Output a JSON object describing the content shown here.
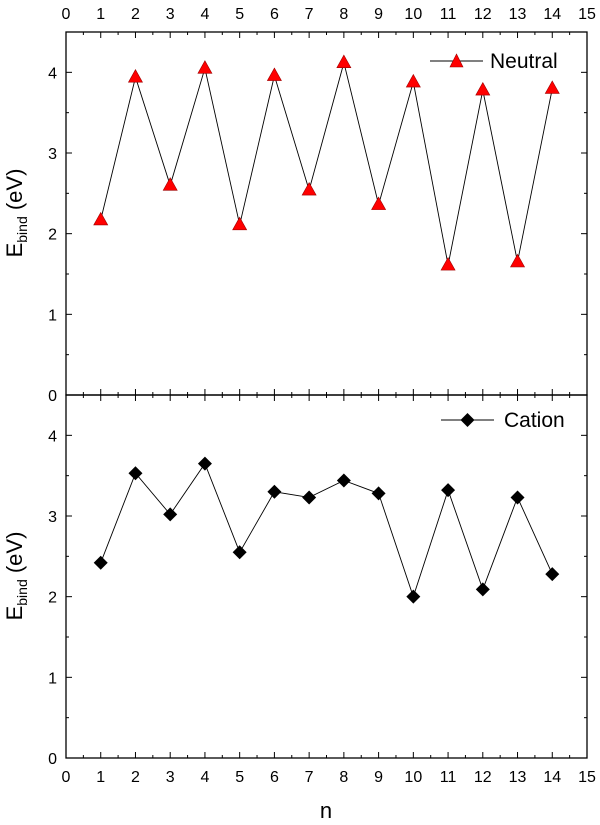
{
  "chart_data": [
    {
      "type": "line",
      "panel": "top",
      "x": [
        1,
        2,
        3,
        4,
        5,
        6,
        7,
        8,
        9,
        10,
        11,
        12,
        13,
        14
      ],
      "series": [
        {
          "name": "Neutral",
          "marker": "triangle",
          "color": "#ff0000",
          "values": [
            2.17,
            3.94,
            2.6,
            4.05,
            2.11,
            3.96,
            2.54,
            4.12,
            2.36,
            3.88,
            1.61,
            3.78,
            1.65,
            3.8
          ]
        }
      ],
      "xlim": [
        0,
        15
      ],
      "ylim": [
        0,
        4.5
      ],
      "xticks": [
        "0",
        "1",
        "2",
        "3",
        "4",
        "5",
        "6",
        "7",
        "8",
        "9",
        "10",
        "11",
        "12",
        "13",
        "14",
        "15"
      ],
      "yticks": [
        "0",
        "1",
        "2",
        "3",
        "4"
      ],
      "ylabel_main": "E",
      "ylabel_sub": "bind",
      "ylabel_unit": " (eV)",
      "legend": "top-right"
    },
    {
      "type": "line",
      "panel": "bottom",
      "x": [
        1,
        2,
        3,
        4,
        5,
        6,
        7,
        8,
        9,
        10,
        11,
        12,
        13,
        14
      ],
      "series": [
        {
          "name": "Cation",
          "marker": "diamond",
          "color": "#000000",
          "values": [
            2.42,
            3.53,
            3.02,
            3.65,
            2.55,
            3.3,
            3.23,
            3.44,
            3.28,
            2.0,
            3.32,
            2.09,
            3.23,
            2.28
          ]
        }
      ],
      "xlim": [
        0,
        15
      ],
      "ylim": [
        0,
        4.5
      ],
      "xticks": [
        "0",
        "1",
        "2",
        "3",
        "4",
        "5",
        "6",
        "7",
        "8",
        "9",
        "10",
        "11",
        "12",
        "13",
        "14",
        "15"
      ],
      "yticks": [
        "0",
        "1",
        "2",
        "3",
        "4"
      ],
      "ylabel_main": "E",
      "ylabel_sub": "bind",
      "ylabel_unit": " (eV)",
      "xlabel": "n",
      "legend": "top-right"
    }
  ]
}
